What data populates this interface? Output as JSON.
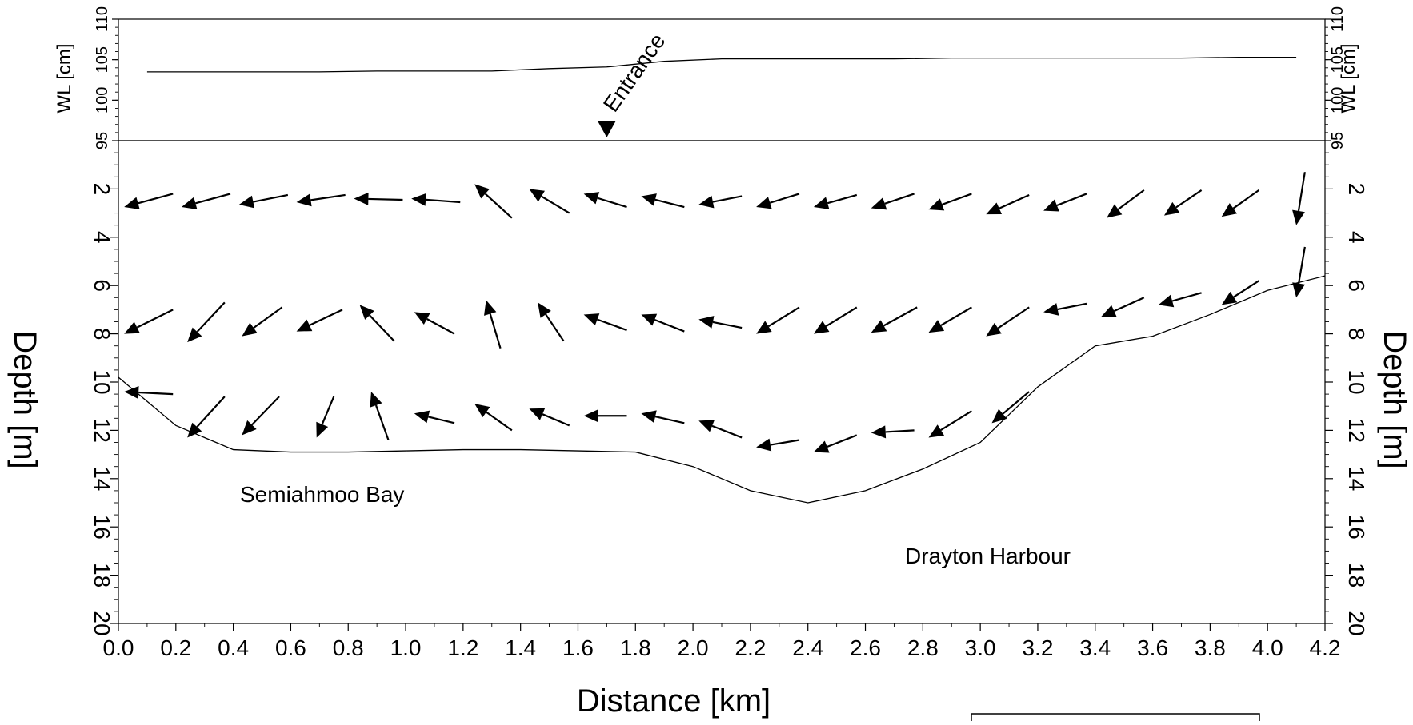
{
  "chart_data": {
    "type": "vector-transect",
    "x_axis": {
      "label": "Distance [km]",
      "range": [
        0.0,
        4.2
      ],
      "ticks": [
        "0.0",
        "0.2",
        "0.4",
        "0.6",
        "0.8",
        "1.0",
        "1.2",
        "1.4",
        "1.6",
        "1.8",
        "2.0",
        "2.2",
        "2.4",
        "2.6",
        "2.8",
        "3.0",
        "3.2",
        "3.4",
        "3.6",
        "3.8",
        "4.0",
        "4.2"
      ]
    },
    "depth_axis": {
      "label": "Depth [m]",
      "range": [
        0,
        20
      ],
      "inverted": true,
      "ticks": [
        "2",
        "4",
        "6",
        "8",
        "10",
        "12",
        "14",
        "16",
        "18",
        "20"
      ]
    },
    "wl_axis": {
      "label": "WL [cm]",
      "range": [
        95,
        110
      ],
      "ticks": [
        "95",
        "100",
        "105",
        "110"
      ]
    },
    "water_level": {
      "x": [
        0.1,
        0.3,
        0.5,
        0.7,
        0.9,
        1.1,
        1.3,
        1.5,
        1.7,
        1.9,
        2.1,
        2.3,
        2.5,
        2.7,
        2.9,
        3.1,
        3.3,
        3.5,
        3.7,
        3.9,
        4.1
      ],
      "y": [
        103.5,
        103.5,
        103.5,
        103.5,
        103.6,
        103.6,
        103.6,
        103.9,
        104.1,
        104.8,
        105.1,
        105.1,
        105.1,
        105.1,
        105.2,
        105.2,
        105.2,
        105.2,
        105.2,
        105.3,
        105.3
      ]
    },
    "bathymetry": {
      "x": [
        0.0,
        0.2,
        0.4,
        0.6,
        0.8,
        1.0,
        1.2,
        1.4,
        1.6,
        1.8,
        2.0,
        2.2,
        2.4,
        2.6,
        2.8,
        3.0,
        3.2,
        3.4,
        3.6,
        3.8,
        4.0,
        4.2
      ],
      "depth": [
        9.8,
        11.8,
        12.8,
        12.9,
        12.9,
        12.85,
        12.8,
        12.8,
        12.85,
        12.9,
        13.5,
        14.5,
        15.0,
        14.5,
        13.6,
        12.5,
        10.2,
        8.5,
        8.1,
        7.2,
        6.2,
        5.6
      ]
    },
    "current_vectors": {
      "note": "each vector: tail (x km, depth m) -> head (x km, depth m)",
      "layer_upper": [
        [
          0.19,
          2.2,
          0.02,
          2.75
        ],
        [
          0.39,
          2.2,
          0.22,
          2.75
        ],
        [
          0.59,
          2.25,
          0.42,
          2.65
        ],
        [
          0.79,
          2.25,
          0.62,
          2.55
        ],
        [
          0.99,
          2.45,
          0.82,
          2.4
        ],
        [
          1.19,
          2.55,
          1.02,
          2.4
        ],
        [
          1.37,
          3.2,
          1.24,
          1.8
        ],
        [
          1.57,
          3.0,
          1.43,
          2.0
        ],
        [
          1.77,
          2.75,
          1.62,
          2.2
        ],
        [
          1.97,
          2.75,
          1.82,
          2.3
        ],
        [
          2.17,
          2.3,
          2.02,
          2.65
        ],
        [
          2.37,
          2.2,
          2.22,
          2.75
        ],
        [
          2.57,
          2.25,
          2.42,
          2.75
        ],
        [
          2.77,
          2.2,
          2.62,
          2.8
        ],
        [
          2.97,
          2.2,
          2.82,
          2.85
        ],
        [
          3.17,
          2.25,
          3.02,
          3.05
        ],
        [
          3.37,
          2.2,
          3.22,
          2.9
        ],
        [
          3.57,
          2.05,
          3.44,
          3.2
        ],
        [
          3.77,
          2.05,
          3.64,
          3.1
        ],
        [
          3.97,
          2.05,
          3.84,
          3.15
        ],
        [
          4.13,
          1.3,
          4.1,
          3.5
        ]
      ],
      "layer_middle": [
        [
          0.19,
          7.0,
          0.02,
          8.0
        ],
        [
          0.37,
          6.7,
          0.24,
          8.35
        ],
        [
          0.57,
          6.9,
          0.43,
          8.1
        ],
        [
          0.78,
          7.0,
          0.62,
          7.9
        ],
        [
          0.96,
          8.3,
          0.84,
          6.8
        ],
        [
          1.17,
          8.0,
          1.03,
          7.1
        ],
        [
          1.33,
          8.6,
          1.28,
          6.6
        ],
        [
          1.55,
          8.3,
          1.46,
          6.7
        ],
        [
          1.77,
          7.85,
          1.62,
          7.2
        ],
        [
          1.97,
          7.9,
          1.82,
          7.2
        ],
        [
          2.17,
          7.75,
          2.02,
          7.4
        ],
        [
          2.37,
          6.9,
          2.22,
          8.0
        ],
        [
          2.57,
          6.9,
          2.42,
          8.0
        ],
        [
          2.78,
          6.9,
          2.62,
          7.95
        ],
        [
          2.97,
          6.9,
          2.82,
          7.95
        ],
        [
          3.17,
          6.9,
          3.02,
          8.1
        ],
        [
          3.37,
          6.75,
          3.22,
          7.1
        ],
        [
          3.57,
          6.5,
          3.42,
          7.3
        ],
        [
          3.77,
          6.3,
          3.62,
          6.8
        ],
        [
          3.97,
          5.8,
          3.84,
          6.8
        ],
        [
          4.13,
          4.4,
          4.1,
          6.5
        ]
      ],
      "layer_lower": [
        [
          0.19,
          10.5,
          0.02,
          10.4
        ],
        [
          0.37,
          10.6,
          0.24,
          12.3
        ],
        [
          0.56,
          10.6,
          0.43,
          12.2
        ],
        [
          0.75,
          10.6,
          0.69,
          12.3
        ],
        [
          0.94,
          12.4,
          0.88,
          10.4
        ],
        [
          1.17,
          11.7,
          1.03,
          11.3
        ],
        [
          1.37,
          12.0,
          1.24,
          10.9
        ],
        [
          1.57,
          11.8,
          1.43,
          11.1
        ],
        [
          1.77,
          11.4,
          1.62,
          11.4
        ],
        [
          1.97,
          11.7,
          1.82,
          11.3
        ],
        [
          2.17,
          12.3,
          2.02,
          11.6
        ],
        [
          2.37,
          12.4,
          2.22,
          12.7
        ],
        [
          2.57,
          12.2,
          2.42,
          12.9
        ],
        [
          2.77,
          12.0,
          2.62,
          12.1
        ],
        [
          2.97,
          11.2,
          2.82,
          12.3
        ],
        [
          3.17,
          10.4,
          3.04,
          11.7
        ]
      ]
    },
    "annotations": {
      "entrance_label": "Entrance",
      "entrance_x": 1.7,
      "semiahmoo_label": "Semiahmoo Bay",
      "drayton_label": "Drayton Harbour"
    },
    "colors": {
      "ink": "#000000",
      "background": "#ffffff"
    }
  }
}
